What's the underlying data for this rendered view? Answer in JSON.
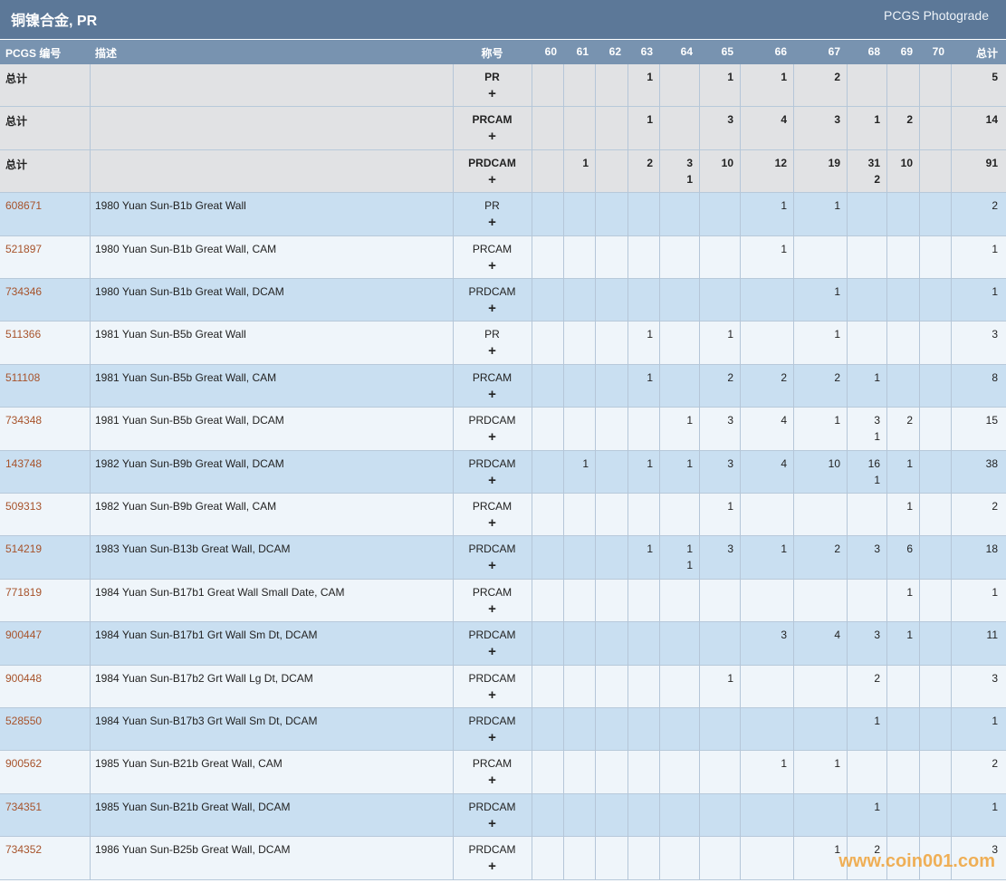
{
  "header": {
    "title": "铜镍合金, PR",
    "subtitle": "PCGS Photograde"
  },
  "table": {
    "columns": [
      "PCGS 编号",
      "描述",
      "称号",
      "60",
      "61",
      "62",
      "63",
      "64",
      "65",
      "66",
      "67",
      "68",
      "69",
      "70",
      "总计"
    ],
    "rows": [
      {
        "id": "总计",
        "description": null,
        "designation": "PR",
        "plus_sign": "+",
        "summary": true,
        "grades": [
          null,
          null,
          null,
          [
            1
          ],
          null,
          [
            1
          ],
          [
            1
          ],
          [
            2
          ],
          null,
          null,
          null
        ],
        "total": 5
      },
      {
        "id": "总计",
        "description": null,
        "designation": "PRCAM",
        "plus_sign": "+",
        "summary": true,
        "grades": [
          null,
          null,
          null,
          [
            1
          ],
          null,
          [
            3
          ],
          [
            4
          ],
          [
            3
          ],
          [
            1
          ],
          [
            2
          ],
          null
        ],
        "total": 14
      },
      {
        "id": "总计",
        "description": null,
        "designation": "PRDCAM",
        "plus_sign": "+",
        "summary": true,
        "grades": [
          null,
          [
            1
          ],
          null,
          [
            2
          ],
          [
            3,
            1
          ],
          [
            10
          ],
          [
            12
          ],
          [
            19
          ],
          [
            31,
            2
          ],
          [
            10
          ],
          null
        ],
        "total": 91
      },
      {
        "id": "608671",
        "description": "1980 Yuan Sun-B1b Great Wall",
        "designation": "PR",
        "plus_sign": "+",
        "summary": false,
        "grades": [
          null,
          null,
          null,
          null,
          null,
          null,
          [
            1
          ],
          [
            1
          ],
          null,
          null,
          null
        ],
        "total": 2
      },
      {
        "id": "521897",
        "description": "1980 Yuan Sun-B1b Great Wall, CAM",
        "designation": "PRCAM",
        "plus_sign": "+",
        "summary": false,
        "grades": [
          null,
          null,
          null,
          null,
          null,
          null,
          [
            1
          ],
          null,
          null,
          null,
          null
        ],
        "total": 1
      },
      {
        "id": "734346",
        "description": "1980 Yuan Sun-B1b Great Wall, DCAM",
        "designation": "PRDCAM",
        "plus_sign": "+",
        "summary": false,
        "grades": [
          null,
          null,
          null,
          null,
          null,
          null,
          null,
          [
            1
          ],
          null,
          null,
          null
        ],
        "total": 1
      },
      {
        "id": "511366",
        "description": "1981 Yuan Sun-B5b Great Wall",
        "designation": "PR",
        "plus_sign": "+",
        "summary": false,
        "grades": [
          null,
          null,
          null,
          [
            1
          ],
          null,
          [
            1
          ],
          null,
          [
            1
          ],
          null,
          null,
          null
        ],
        "total": 3
      },
      {
        "id": "511108",
        "description": "1981 Yuan Sun-B5b Great Wall, CAM",
        "designation": "PRCAM",
        "plus_sign": "+",
        "summary": false,
        "grades": [
          null,
          null,
          null,
          [
            1
          ],
          null,
          [
            2
          ],
          [
            2
          ],
          [
            2
          ],
          [
            1
          ],
          null,
          null
        ],
        "total": 8
      },
      {
        "id": "734348",
        "description": "1981 Yuan Sun-B5b Great Wall, DCAM",
        "designation": "PRDCAM",
        "plus_sign": "+",
        "summary": false,
        "grades": [
          null,
          null,
          null,
          null,
          [
            1
          ],
          [
            3
          ],
          [
            4
          ],
          [
            1
          ],
          [
            3,
            1
          ],
          [
            2
          ],
          null
        ],
        "total": 15
      },
      {
        "id": "143748",
        "description": "1982 Yuan Sun-B9b Great Wall, DCAM",
        "designation": "PRDCAM",
        "plus_sign": "+",
        "summary": false,
        "grades": [
          null,
          [
            1
          ],
          null,
          [
            1
          ],
          [
            1
          ],
          [
            3
          ],
          [
            4
          ],
          [
            10
          ],
          [
            16,
            1
          ],
          [
            1
          ],
          null
        ],
        "total": 38
      },
      {
        "id": "509313",
        "description": "1982 Yuan Sun-B9b Great Wall, CAM",
        "designation": "PRCAM",
        "plus_sign": "+",
        "summary": false,
        "grades": [
          null,
          null,
          null,
          null,
          null,
          [
            1
          ],
          null,
          null,
          null,
          [
            1
          ],
          null
        ],
        "total": 2
      },
      {
        "id": "514219",
        "description": "1983 Yuan Sun-B13b Great Wall, DCAM",
        "designation": "PRDCAM",
        "plus_sign": "+",
        "summary": false,
        "grades": [
          null,
          null,
          null,
          [
            1
          ],
          [
            1,
            1
          ],
          [
            3
          ],
          [
            1
          ],
          [
            2
          ],
          [
            3
          ],
          [
            6
          ],
          null
        ],
        "total": 18
      },
      {
        "id": "771819",
        "description": "1984 Yuan Sun-B17b1 Great Wall Small Date, CAM",
        "designation": "PRCAM",
        "plus_sign": "+",
        "summary": false,
        "grades": [
          null,
          null,
          null,
          null,
          null,
          null,
          null,
          null,
          null,
          [
            1
          ],
          null
        ],
        "total": 1
      },
      {
        "id": "900447",
        "description": "1984 Yuan Sun-B17b1 Grt Wall Sm Dt, DCAM",
        "designation": "PRDCAM",
        "plus_sign": "+",
        "summary": false,
        "grades": [
          null,
          null,
          null,
          null,
          null,
          null,
          [
            3
          ],
          [
            4
          ],
          [
            3
          ],
          [
            1
          ],
          null
        ],
        "total": 11
      },
      {
        "id": "900448",
        "description": "1984 Yuan Sun-B17b2 Grt Wall Lg Dt, DCAM",
        "designation": "PRDCAM",
        "plus_sign": "+",
        "summary": false,
        "grades": [
          null,
          null,
          null,
          null,
          null,
          [
            1
          ],
          null,
          null,
          [
            2
          ],
          null,
          null
        ],
        "total": 3
      },
      {
        "id": "528550",
        "description": "1984 Yuan Sun-B17b3 Grt Wall Sm Dt, DCAM",
        "designation": "PRDCAM",
        "plus_sign": "+",
        "summary": false,
        "grades": [
          null,
          null,
          null,
          null,
          null,
          null,
          null,
          null,
          [
            1
          ],
          null,
          null
        ],
        "total": 1
      },
      {
        "id": "900562",
        "description": "1985 Yuan Sun-B21b Great Wall, CAM",
        "designation": "PRCAM",
        "plus_sign": "+",
        "summary": false,
        "grades": [
          null,
          null,
          null,
          null,
          null,
          null,
          [
            1
          ],
          [
            1
          ],
          null,
          null,
          null
        ],
        "total": 2
      },
      {
        "id": "734351",
        "description": "1985 Yuan Sun-B21b Great Wall, DCAM",
        "designation": "PRDCAM",
        "plus_sign": "+",
        "summary": false,
        "grades": [
          null,
          null,
          null,
          null,
          null,
          null,
          null,
          null,
          [
            1
          ],
          null,
          null
        ],
        "total": 1
      },
      {
        "id": "734352",
        "description": "1986 Yuan Sun-B25b Great Wall, DCAM",
        "designation": "PRDCAM",
        "plus_sign": "+",
        "summary": false,
        "grades": [
          null,
          null,
          null,
          null,
          null,
          null,
          null,
          [
            1
          ],
          [
            2
          ],
          null,
          null
        ],
        "total": 3
      }
    ]
  },
  "watermark": "www.coin001.com"
}
